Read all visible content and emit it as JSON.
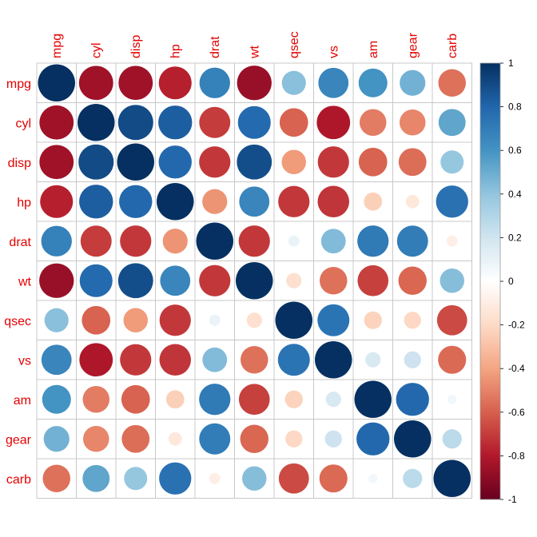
{
  "chart_data": {
    "type": "heatmap",
    "variables": [
      "mpg",
      "cyl",
      "disp",
      "hp",
      "drat",
      "wt",
      "qsec",
      "vs",
      "am",
      "gear",
      "carb"
    ],
    "matrix": [
      [
        1,
        -0.85,
        -0.85,
        -0.78,
        0.68,
        -0.87,
        0.42,
        0.66,
        0.6,
        0.48,
        -0.55
      ],
      [
        -0.85,
        1,
        0.9,
        0.83,
        -0.7,
        0.78,
        -0.59,
        -0.81,
        -0.52,
        -0.49,
        0.53
      ],
      [
        -0.85,
        0.9,
        1,
        0.79,
        -0.71,
        0.89,
        -0.43,
        -0.71,
        -0.59,
        -0.56,
        0.39
      ],
      [
        -0.78,
        0.83,
        0.79,
        1,
        -0.45,
        0.66,
        -0.71,
        -0.72,
        -0.24,
        -0.13,
        0.75
      ],
      [
        0.68,
        -0.7,
        -0.71,
        -0.45,
        1,
        -0.71,
        0.09,
        0.44,
        0.71,
        0.7,
        -0.09
      ],
      [
        -0.87,
        0.78,
        0.89,
        0.66,
        -0.71,
        1,
        -0.17,
        -0.55,
        -0.69,
        -0.58,
        0.43
      ],
      [
        0.42,
        -0.59,
        -0.43,
        -0.71,
        0.09,
        -0.17,
        1,
        0.74,
        -0.23,
        -0.21,
        -0.66
      ],
      [
        0.66,
        -0.81,
        -0.71,
        -0.72,
        0.44,
        -0.55,
        0.74,
        1,
        0.17,
        0.21,
        -0.57
      ],
      [
        0.6,
        -0.52,
        -0.59,
        -0.24,
        0.71,
        -0.69,
        -0.23,
        0.17,
        1,
        0.79,
        0.06
      ],
      [
        0.48,
        -0.49,
        -0.56,
        -0.13,
        0.7,
        -0.58,
        -0.21,
        0.21,
        0.79,
        1,
        0.27
      ],
      [
        -0.55,
        0.53,
        0.39,
        0.75,
        -0.09,
        0.43,
        -0.66,
        -0.57,
        0.06,
        0.27,
        1
      ]
    ],
    "colorbar": {
      "range": [
        -1,
        1
      ],
      "ticks": [
        "1",
        "0.8",
        "0.6",
        "0.4",
        "0.2",
        "0",
        "-0.2",
        "-0.4",
        "-0.6",
        "-0.8",
        "-1"
      ],
      "tick_values": [
        1,
        0.8,
        0.6,
        0.4,
        0.2,
        0,
        -0.2,
        -0.4,
        -0.6,
        -0.8,
        -1
      ]
    },
    "colors": {
      "label": "#e30000",
      "grid": "#c8c8c8",
      "scale": [
        "#67001f",
        "#b2182b",
        "#d6604d",
        "#f4a582",
        "#fddbc7",
        "#ffffff",
        "#d1e5f0",
        "#92c5de",
        "#4393c3",
        "#2166ac",
        "#053061"
      ]
    }
  }
}
